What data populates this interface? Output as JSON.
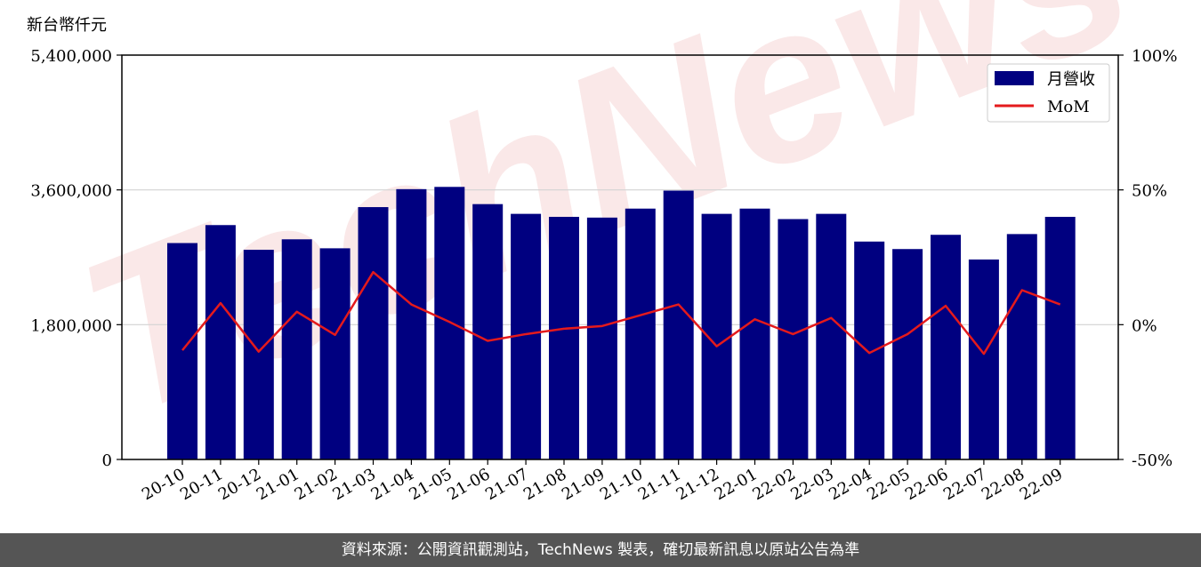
{
  "unit_label": "新台幣仟元",
  "footer": {
    "text": "資料來源：公開資訊觀測站，TechNews 製表，確切最新訊息以原站公告為準"
  },
  "watermark": {
    "text": "TechNews"
  },
  "colors": {
    "bar": "#000080",
    "line": "#e41a1c",
    "grid": "#d3d3d3",
    "footer_bg": "#555555",
    "watermark": "#f6d6d6"
  },
  "chart_data": {
    "type": "bar",
    "categories": [
      "20-10",
      "20-11",
      "20-12",
      "21-01",
      "21-02",
      "21-03",
      "21-04",
      "21-05",
      "21-06",
      "21-07",
      "21-08",
      "21-09",
      "21-10",
      "21-11",
      "21-12",
      "22-01",
      "22-02",
      "22-03",
      "22-04",
      "22-05",
      "22-06",
      "22-07",
      "22-08",
      "22-09"
    ],
    "series": [
      {
        "name": "月營收",
        "type": "bar",
        "axis": "left",
        "values": [
          2890000,
          3130000,
          2800000,
          2940000,
          2820000,
          3370000,
          3610000,
          3640000,
          3410000,
          3280000,
          3240000,
          3230000,
          3350000,
          3590000,
          3280000,
          3350000,
          3210000,
          3280000,
          2910000,
          2810000,
          3000000,
          2670000,
          3010000,
          3240000
        ]
      },
      {
        "name": "MoM",
        "type": "line",
        "axis": "right",
        "values": [
          -9.5,
          8.0,
          -10.0,
          4.8,
          -3.8,
          19.5,
          7.5,
          1.0,
          -6.0,
          -3.5,
          -1.5,
          -0.5,
          3.5,
          7.5,
          -8.0,
          2.0,
          -3.5,
          2.5,
          -10.5,
          -3.5,
          7.0,
          -10.8,
          12.8,
          7.5
        ]
      }
    ],
    "y_left": {
      "ylim": [
        0,
        5400000
      ],
      "ticks": [
        0,
        1800000,
        3600000,
        5400000
      ],
      "tick_labels": [
        "0",
        "1,800,000",
        "3,600,000",
        "5,400,000"
      ]
    },
    "y_right": {
      "ylim": [
        -50,
        100
      ],
      "ticks": [
        -50,
        0,
        50,
        100
      ],
      "tick_labels": [
        "-50%",
        "0%",
        "50%",
        "100%"
      ]
    },
    "grid": "horizontal",
    "legend": "top-right"
  }
}
